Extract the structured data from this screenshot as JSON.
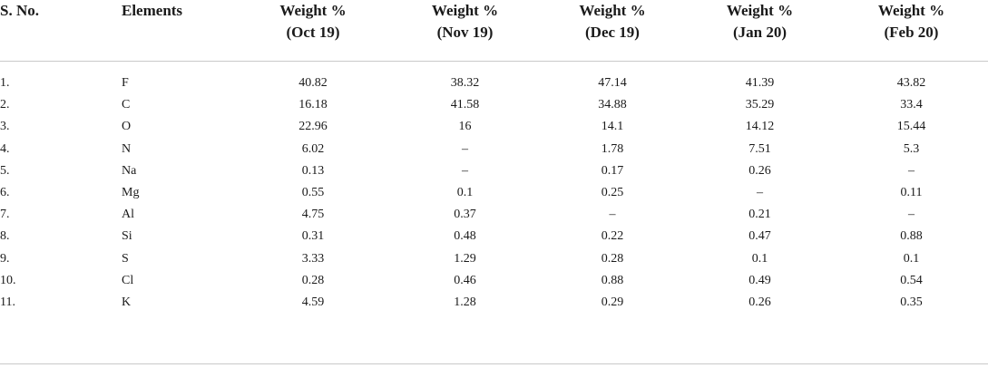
{
  "table": {
    "headers": [
      {
        "line1": "S. No.",
        "line2": ""
      },
      {
        "line1": "Elements",
        "line2": ""
      },
      {
        "line1": "Weight %",
        "line2": "(Oct 19)"
      },
      {
        "line1": "Weight %",
        "line2": "(Nov 19)"
      },
      {
        "line1": "Weight %",
        "line2": "(Dec 19)"
      },
      {
        "line1": "Weight %",
        "line2": "(Jan 20)"
      },
      {
        "line1": "Weight %",
        "line2": "(Feb 20)"
      }
    ],
    "rows": [
      {
        "sno": "1.",
        "element": "F",
        "oct19": "40.82",
        "nov19": "38.32",
        "dec19": "47.14",
        "jan20": "41.39",
        "feb20": "43.82"
      },
      {
        "sno": "2.",
        "element": "C",
        "oct19": "16.18",
        "nov19": "41.58",
        "dec19": "34.88",
        "jan20": "35.29",
        "feb20": "33.4"
      },
      {
        "sno": "3.",
        "element": "O",
        "oct19": "22.96",
        "nov19": "16",
        "dec19": "14.1",
        "jan20": "14.12",
        "feb20": "15.44"
      },
      {
        "sno": "4.",
        "element": "N",
        "oct19": "6.02",
        "nov19": "–",
        "dec19": "1.78",
        "jan20": "7.51",
        "feb20": "5.3"
      },
      {
        "sno": "5.",
        "element": "Na",
        "oct19": "0.13",
        "nov19": "–",
        "dec19": "0.17",
        "jan20": "0.26",
        "feb20": "–"
      },
      {
        "sno": "6.",
        "element": "Mg",
        "oct19": "0.55",
        "nov19": "0.1",
        "dec19": "0.25",
        "jan20": "–",
        "feb20": "0.11"
      },
      {
        "sno": "7.",
        "element": "Al",
        "oct19": "4.75",
        "nov19": "0.37",
        "dec19": "–",
        "jan20": "0.21",
        "feb20": "–"
      },
      {
        "sno": "8.",
        "element": "Si",
        "oct19": "0.31",
        "nov19": "0.48",
        "dec19": "0.22",
        "jan20": "0.47",
        "feb20": "0.88"
      },
      {
        "sno": "9.",
        "element": "S",
        "oct19": "3.33",
        "nov19": "1.29",
        "dec19": "0.28",
        "jan20": "0.1",
        "feb20": "0.1"
      },
      {
        "sno": "10.",
        "element": "Cl",
        "oct19": "0.28",
        "nov19": "0.46",
        "dec19": "0.88",
        "jan20": "0.49",
        "feb20": "0.54"
      },
      {
        "sno": "11.",
        "element": "K",
        "oct19": "4.59",
        "nov19": "1.28",
        "dec19": "0.29",
        "jan20": "0.26",
        "feb20": "0.35"
      }
    ]
  },
  "colors": {
    "text": "#1a1a1a",
    "rule": "#c9c9c9",
    "background": "#ffffff"
  }
}
